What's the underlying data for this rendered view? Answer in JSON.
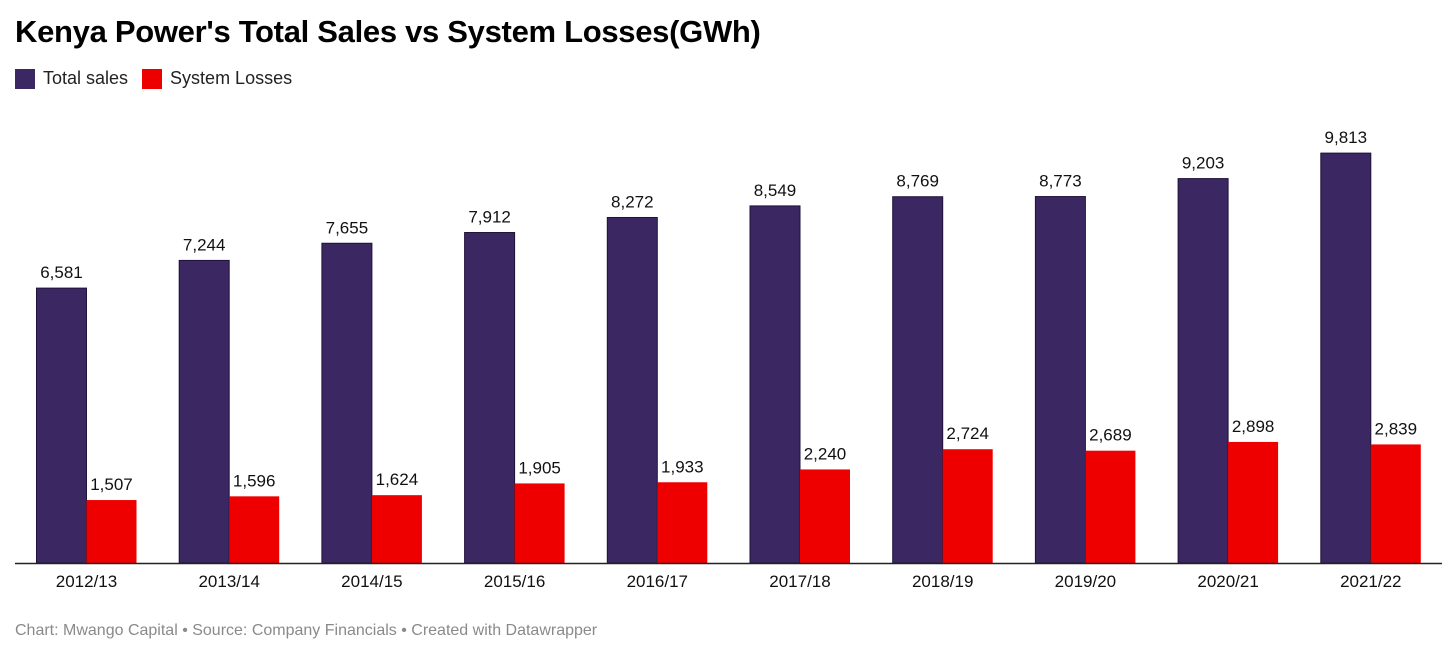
{
  "title": "Kenya Power's Total Sales vs System Losses(GWh)",
  "footer": "Chart: Mwango Capital • Source: Company Financials • Created with Datawrapper",
  "colors": {
    "total_sales": "#3b2862",
    "system_losses": "#ee0000"
  },
  "chart_data": {
    "type": "bar",
    "title": "Kenya Power's Total Sales vs System Losses(GWh)",
    "xlabel": "",
    "ylabel": "",
    "legend_position": "top-left",
    "grid": false,
    "ylim": [
      0,
      10500
    ],
    "categories": [
      "2012/13",
      "2013/14",
      "2014/15",
      "2015/16",
      "2016/17",
      "2017/18",
      "2018/19",
      "2019/20",
      "2020/21",
      "2021/22"
    ],
    "series": [
      {
        "name": "Total sales",
        "values": [
          6581,
          7244,
          7655,
          7912,
          8272,
          8549,
          8769,
          8773,
          9203,
          9813
        ],
        "labels": [
          "6,581",
          "7,244",
          "7,655",
          "7,912",
          "8,272",
          "8,549",
          "8,769",
          "8,773",
          "9,203",
          "9,813"
        ]
      },
      {
        "name": "System Losses",
        "values": [
          1507,
          1596,
          1624,
          1905,
          1933,
          2240,
          2724,
          2689,
          2898,
          2839
        ],
        "labels": [
          "1,507",
          "1,596",
          "1,624",
          "1,905",
          "1,933",
          "2,240",
          "2,724",
          "2,689",
          "2,898",
          "2,839"
        ]
      }
    ]
  }
}
